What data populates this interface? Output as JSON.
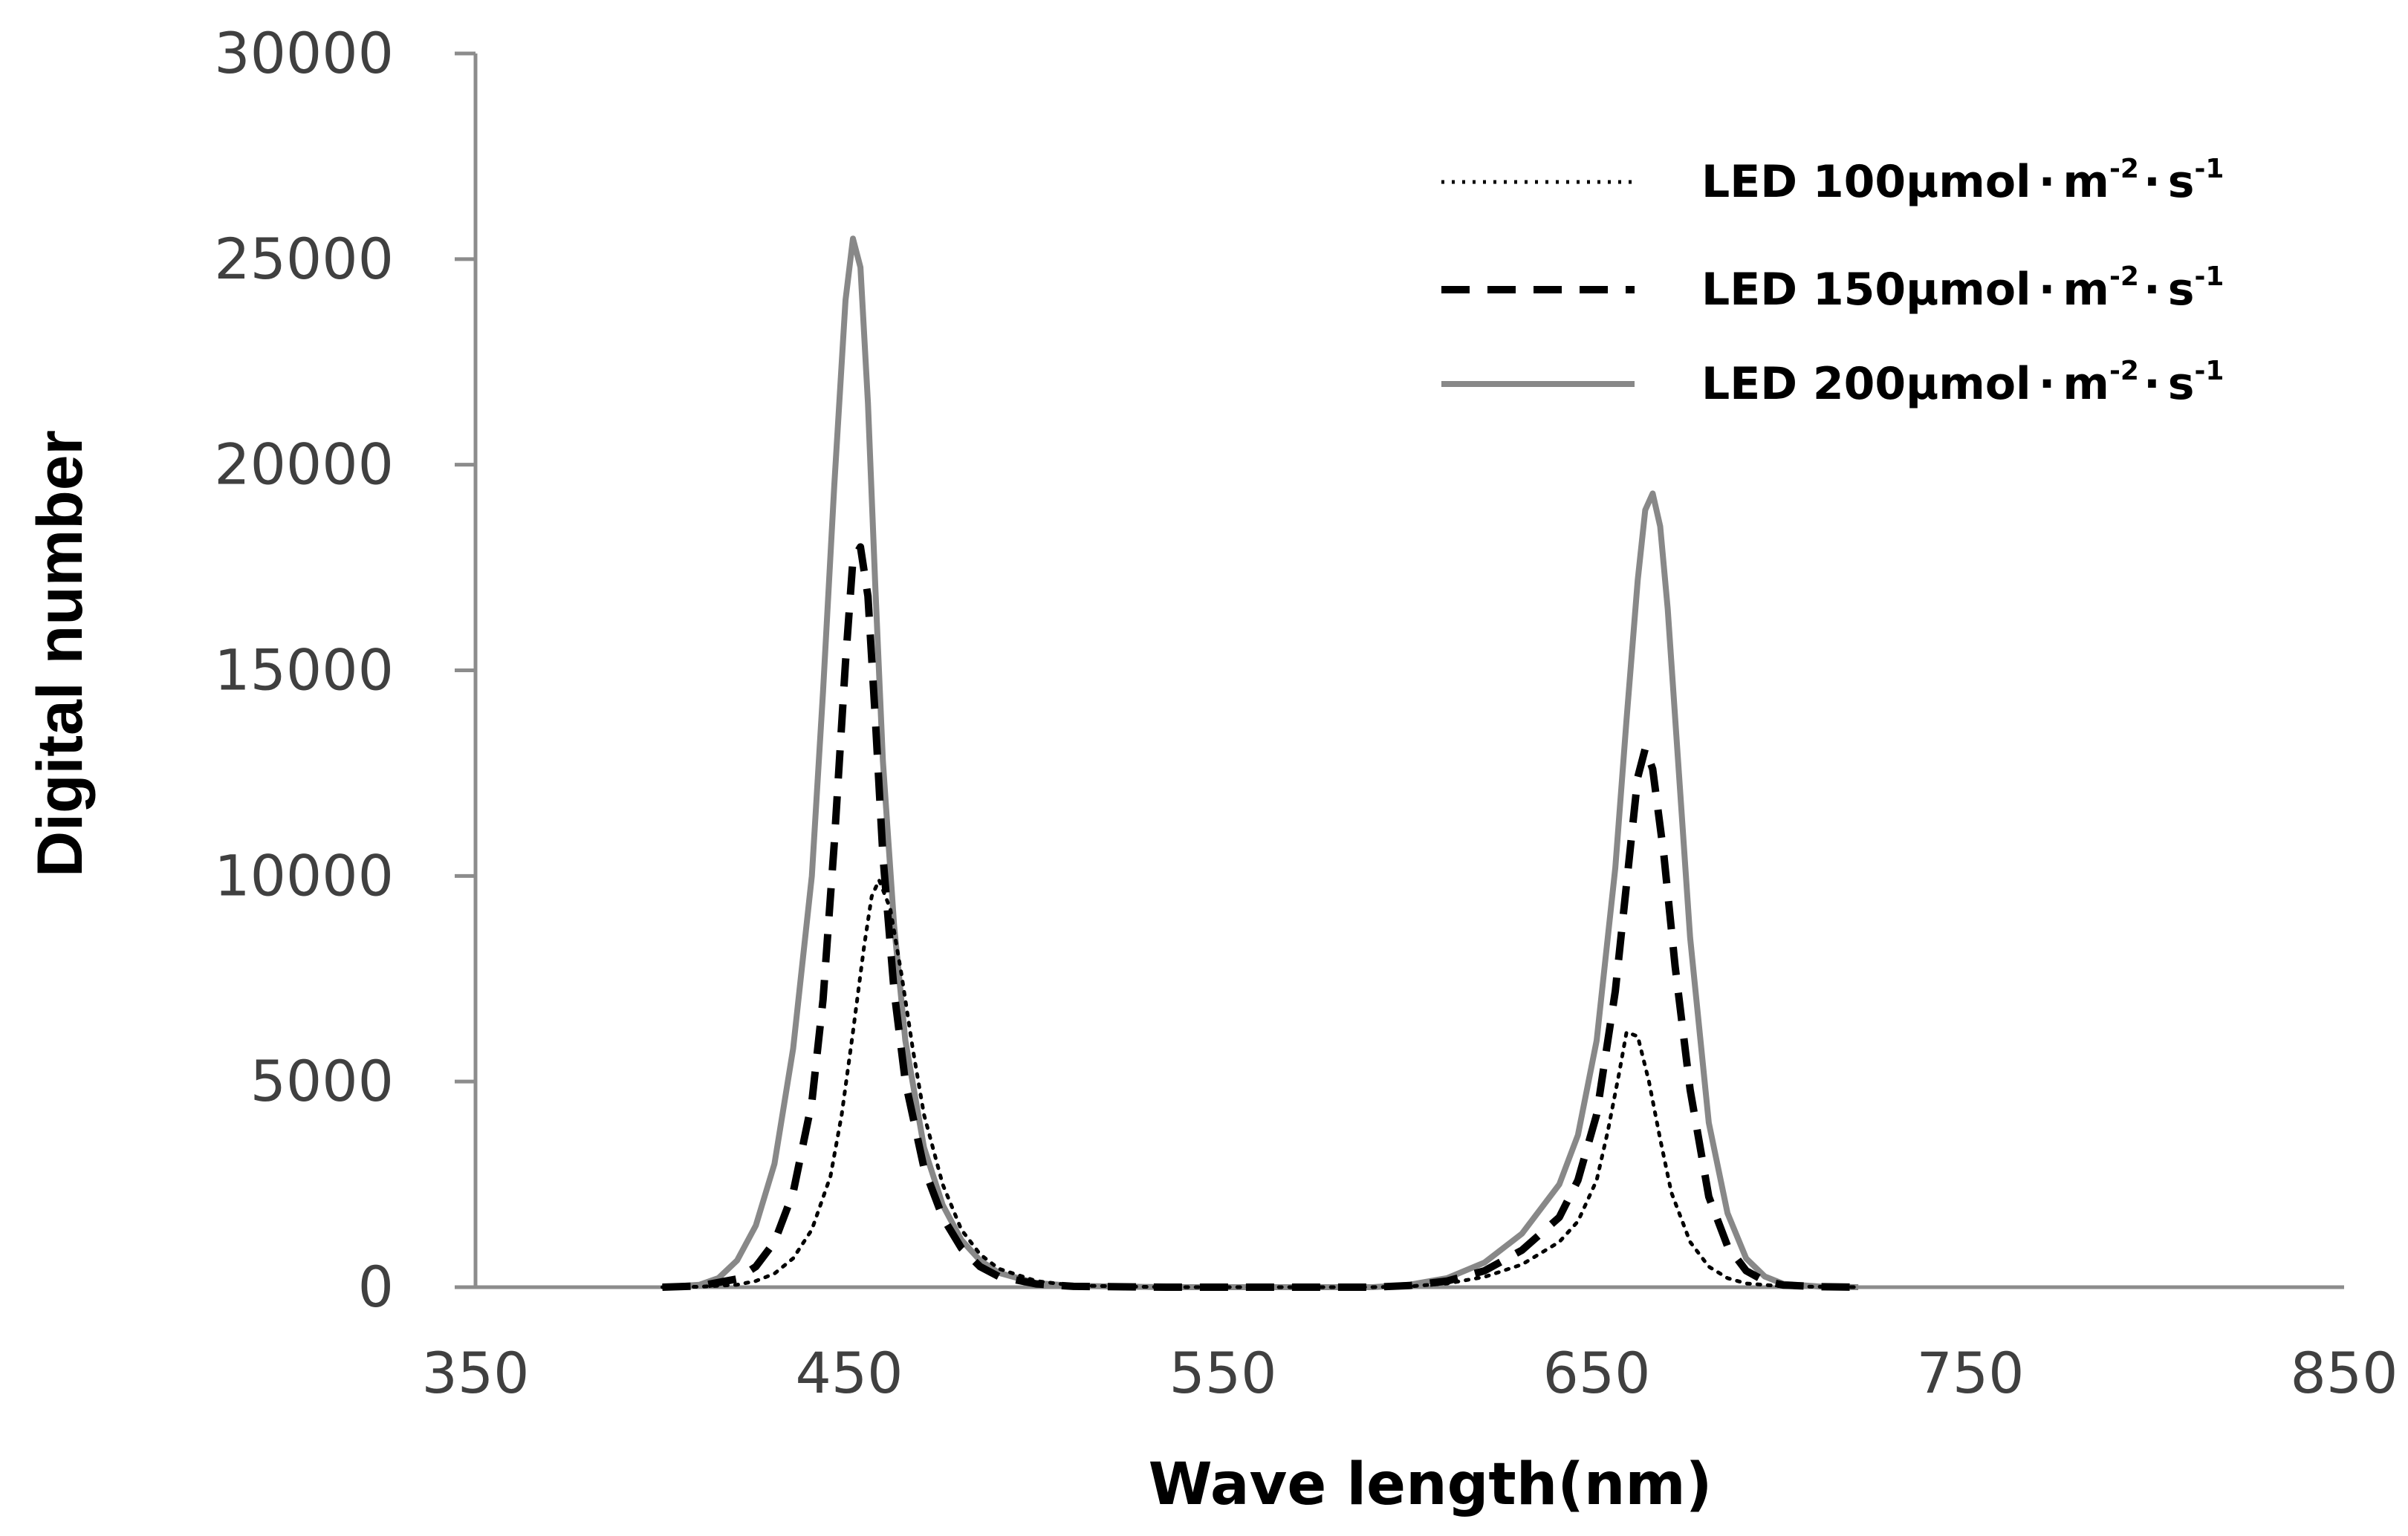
{
  "chart_data": {
    "type": "line",
    "title": "",
    "xlabel": "Wave length(nm)",
    "ylabel": "Digital number",
    "xlim": [
      350,
      850
    ],
    "ylim": [
      0,
      30000
    ],
    "x_ticks": [
      350,
      450,
      550,
      650,
      750,
      850
    ],
    "y_ticks": [
      0,
      5000,
      10000,
      15000,
      20000,
      25000,
      30000
    ],
    "grid": false,
    "legend_position": "top-right",
    "series": [
      {
        "name": "LED 100µmol·m-2·s-1",
        "label_parts": [
          "LED 100µmol",
          "·",
          "m",
          "-2",
          "·",
          "s",
          "-1"
        ],
        "color": "#000000",
        "style": "dotted",
        "x": [
          400,
          410,
          420,
          425,
          430,
          435,
          440,
          445,
          448,
          451,
          454,
          456,
          458,
          461,
          464,
          467,
          470,
          475,
          480,
          485,
          490,
          500,
          510,
          535,
          590,
          600,
          610,
          620,
          630,
          640,
          645,
          650,
          653,
          656,
          658,
          661,
          664,
          667,
          670,
          675,
          680,
          685,
          690,
          700,
          720
        ],
        "y": [
          0,
          10,
          60,
          150,
          330,
          700,
          1400,
          2700,
          4200,
          6200,
          8300,
          9500,
          9900,
          9200,
          7600,
          5800,
          4200,
          2500,
          1400,
          800,
          450,
          150,
          40,
          0,
          0,
          20,
          90,
          250,
          550,
          1100,
          1600,
          2600,
          3800,
          5200,
          6200,
          6100,
          5000,
          3600,
          2300,
          1100,
          500,
          220,
          90,
          20,
          0
        ]
      },
      {
        "name": "LED 150µmol·m-2·s-1",
        "label_parts": [
          "LED 150µmol",
          "·",
          "m",
          "-2",
          "·",
          "s",
          "-1"
        ],
        "color": "#000000",
        "style": "dashed",
        "x": [
          400,
          410,
          420,
          425,
          430,
          435,
          440,
          443,
          446,
          449,
          451,
          453,
          455,
          457,
          459,
          462,
          465,
          470,
          475,
          480,
          485,
          490,
          500,
          510,
          535,
          590,
          600,
          610,
          620,
          630,
          640,
          645,
          650,
          655,
          658,
          661,
          663,
          665,
          668,
          671,
          675,
          680,
          685,
          690,
          695,
          700,
          710,
          720
        ],
        "y": [
          0,
          30,
          200,
          500,
          1100,
          2300,
          4500,
          7000,
          10800,
          15200,
          17700,
          18000,
          16800,
          13800,
          10500,
          7200,
          5000,
          2900,
          1700,
          950,
          500,
          260,
          80,
          20,
          0,
          0,
          40,
          150,
          400,
          900,
          1700,
          2600,
          4200,
          7200,
          9800,
          12400,
          13100,
          12600,
          10500,
          7800,
          4800,
          2200,
          1000,
          400,
          150,
          50,
          10,
          0
        ]
      },
      {
        "name": "LED 200µmol·m-2·s-1",
        "label_parts": [
          "LED 200µmol",
          "·",
          "m",
          "-2",
          "·",
          "s",
          "-1"
        ],
        "color": "#888888",
        "style": "solid",
        "x": [
          400,
          410,
          415,
          420,
          425,
          430,
          435,
          440,
          443,
          446,
          449,
          451,
          453,
          455,
          457,
          459,
          462,
          465,
          470,
          475,
          480,
          485,
          490,
          500,
          510,
          535,
          590,
          600,
          610,
          620,
          630,
          640,
          645,
          650,
          655,
          658,
          661,
          663,
          665,
          667,
          669,
          672,
          675,
          680,
          685,
          690,
          695,
          700,
          710,
          720
        ],
        "y": [
          0,
          60,
          220,
          650,
          1500,
          3000,
          5800,
          10000,
          14500,
          19500,
          24000,
          25500,
          24800,
          21500,
          17000,
          12800,
          8800,
          6000,
          3400,
          2000,
          1150,
          650,
          350,
          100,
          30,
          0,
          0,
          60,
          220,
          600,
          1300,
          2500,
          3700,
          6000,
          10200,
          13800,
          17200,
          18900,
          19300,
          18500,
          16500,
          12500,
          8500,
          4000,
          1800,
          700,
          260,
          80,
          15,
          0
        ]
      }
    ]
  }
}
